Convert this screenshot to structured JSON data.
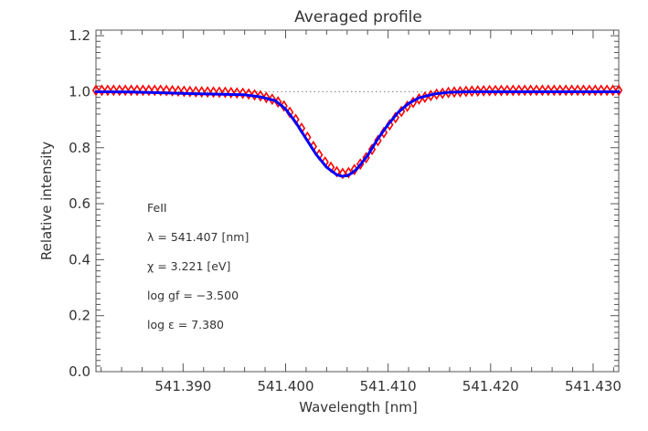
{
  "chart_data": {
    "type": "line",
    "title": "Averaged profile",
    "xlabel": "Wavelength [nm]",
    "ylabel": "Relative intensity",
    "xlim": [
      541.3815,
      541.4325
    ],
    "ylim": [
      0.0,
      1.22
    ],
    "x_ticks": [
      541.39,
      541.4,
      541.41,
      541.42,
      541.43
    ],
    "x_tick_labels": [
      "541.390",
      "541.400",
      "541.410",
      "541.420",
      "541.430"
    ],
    "y_ticks": [
      0.0,
      0.2,
      0.4,
      0.6,
      0.8,
      1.0,
      1.2
    ],
    "y_tick_labels": [
      "0.0",
      "0.2",
      "0.4",
      "0.6",
      "0.8",
      "1.0",
      "1.2"
    ],
    "continuum_level": 1.0,
    "grid": false,
    "annotations": [
      "FeII",
      "λ = 541.407 [nm]",
      "χ =  3.221 [eV]",
      "log gf = −3.500",
      "log ε =  7.380"
    ],
    "series": [
      {
        "color": "#ff0000",
        "marker": "diamond",
        "x": [
          541.3815,
          541.385,
          541.388,
          541.391,
          541.394,
          541.396,
          541.3975,
          541.399,
          541.4,
          541.401,
          541.402,
          541.403,
          541.404,
          541.405,
          541.4055,
          541.406,
          541.4065,
          541.407,
          541.408,
          541.409,
          541.41,
          541.411,
          541.412,
          541.413,
          541.4145,
          541.416,
          541.418,
          541.42,
          541.423,
          541.426,
          541.429,
          541.4325
        ],
        "y": [
          1.005,
          1.005,
          1.005,
          1.0,
          0.998,
          0.994,
          0.986,
          0.97,
          0.945,
          0.9,
          0.845,
          0.787,
          0.742,
          0.714,
          0.708,
          0.709,
          0.716,
          0.73,
          0.77,
          0.825,
          0.875,
          0.92,
          0.952,
          0.974,
          0.99,
          0.998,
          1.002,
          1.004,
          1.005,
          1.005,
          1.005,
          1.005
        ]
      },
      {
        "color": "#0000ff",
        "marker": "none",
        "x": [
          541.3815,
          541.385,
          541.388,
          541.391,
          541.394,
          541.396,
          541.3975,
          541.399,
          541.4,
          541.401,
          541.402,
          541.403,
          541.404,
          541.405,
          541.4055,
          541.406,
          541.4065,
          541.407,
          541.408,
          541.409,
          541.41,
          541.411,
          541.412,
          541.413,
          541.4145,
          541.416,
          541.418,
          541.42,
          541.423,
          541.426,
          541.429,
          541.4325
        ],
        "y": [
          1.0,
          0.999,
          0.996,
          0.993,
          0.991,
          0.989,
          0.982,
          0.968,
          0.938,
          0.89,
          0.832,
          0.775,
          0.73,
          0.703,
          0.698,
          0.7,
          0.71,
          0.726,
          0.772,
          0.832,
          0.883,
          0.927,
          0.958,
          0.978,
          0.992,
          0.998,
          1.0,
          1.0,
          1.0,
          1.0,
          1.0,
          1.0
        ]
      }
    ]
  }
}
